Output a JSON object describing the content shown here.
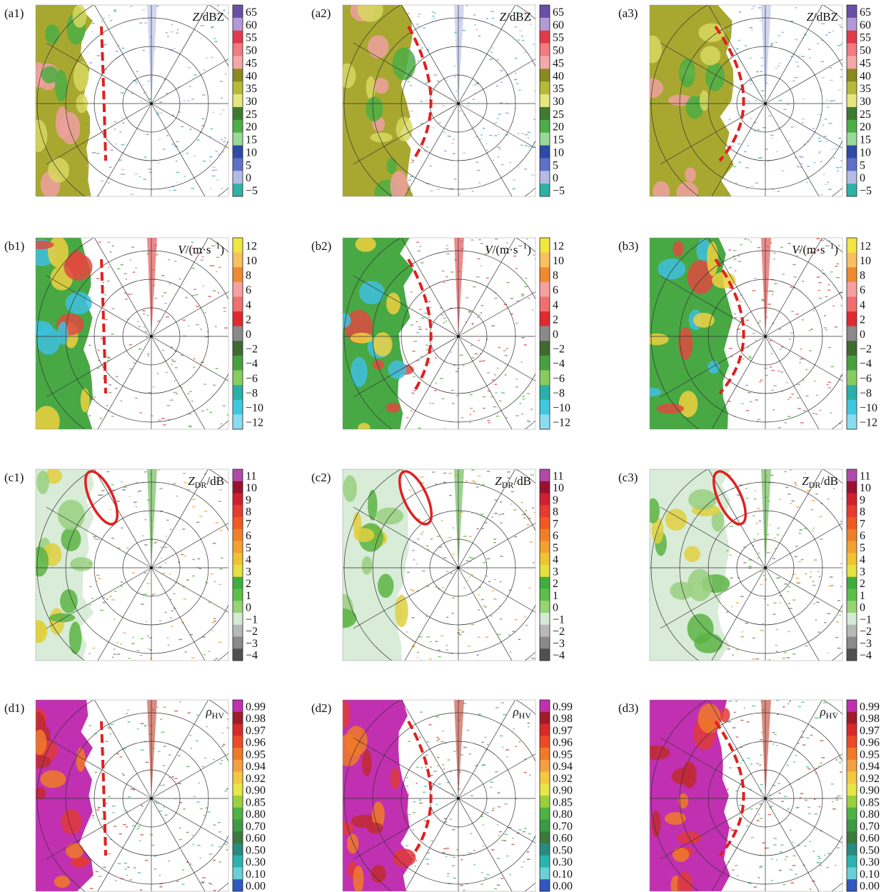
{
  "rows": [
    {
      "title": {
        "symbol": "Z",
        "unit": "/dBZ"
      },
      "colorbar": {
        "labels": [
          "65",
          "60",
          "55",
          "50",
          "45",
          "40",
          "35",
          "30",
          "25",
          "20",
          "15",
          "10",
          "5",
          "0",
          "−5"
        ],
        "colors": [
          "#6a4fa8",
          "#b29ad6",
          "#e23a4a",
          "#f27a80",
          "#f5a8a8",
          "#8a8a1e",
          "#b8b83a",
          "#e6e67e",
          "#3f7a32",
          "#4cae44",
          "#98d898",
          "#2e4aa6",
          "#5e70c8",
          "#b4bce6",
          "#2fb2a6"
        ]
      },
      "panels": [
        {
          "label": "(a1)"
        },
        {
          "label": "(a2)"
        },
        {
          "label": "(a3)"
        }
      ]
    },
    {
      "title": {
        "symbol": "V",
        "unit": "/(m·s",
        "superscript": "−1",
        "close": ")"
      },
      "colorbar": {
        "labels": [
          "12",
          "10",
          "8",
          "6",
          "4",
          "2",
          "0",
          "−2",
          "−4",
          "−6",
          "−8",
          "−10",
          "−12"
        ],
        "colors": [
          "#f2e640",
          "#f8c060",
          "#f08a30",
          "#f6a0a0",
          "#f07070",
          "#e02a30",
          "#8a8a8a",
          "#3f6a30",
          "#48a040",
          "#88cc60",
          "#2ab0a8",
          "#40c8e0",
          "#8adcf0"
        ]
      },
      "panels": [
        {
          "label": "(b1)"
        },
        {
          "label": "(b2)"
        },
        {
          "label": "(b3)"
        }
      ]
    },
    {
      "title": {
        "symbol": "Z",
        "subscript": "DR",
        "unit": "/dB"
      },
      "colorbar": {
        "labels": [
          "11",
          "10",
          "9",
          "8",
          "7",
          "6",
          "5",
          "4",
          "3",
          "2",
          "1",
          "0",
          "−1",
          "−2",
          "−3",
          "−4"
        ],
        "colors": [
          "#b04aa8",
          "#9a1030",
          "#d02030",
          "#e83a30",
          "#f05a20",
          "#f08028",
          "#f4a030",
          "#f0c430",
          "#e6e040",
          "#3fae3c",
          "#5cc048",
          "#96d474",
          "#d4ead4",
          "#b8b8b8",
          "#8a8a8a",
          "#505050"
        ]
      },
      "panels": [
        {
          "label": "(c1)"
        },
        {
          "label": "(c2)"
        },
        {
          "label": "(c3)"
        }
      ]
    },
    {
      "title": {
        "symbol": "ρ",
        "subscript": "HV"
      },
      "colorbar": {
        "labels": [
          "0.99",
          "0.98",
          "0.97",
          "0.96",
          "0.95",
          "0.94",
          "0.92",
          "0.90",
          "0.85",
          "0.80",
          "0.70",
          "0.60",
          "0.50",
          "0.30",
          "0.10",
          "0.00"
        ],
        "colors": [
          "#c030b0",
          "#a01a2a",
          "#d82a2a",
          "#ee4a28",
          "#f07a28",
          "#f4a040",
          "#f4c840",
          "#e8e648",
          "#9ad03c",
          "#4cb444",
          "#3c9a44",
          "#3a7a3c",
          "#2a8a80",
          "#2ab4b0",
          "#6ad0d8",
          "#3058c0"
        ]
      },
      "panels": [
        {
          "label": "(d1)"
        },
        {
          "label": "(d2)"
        },
        {
          "label": "(d3)"
        }
      ]
    }
  ]
}
